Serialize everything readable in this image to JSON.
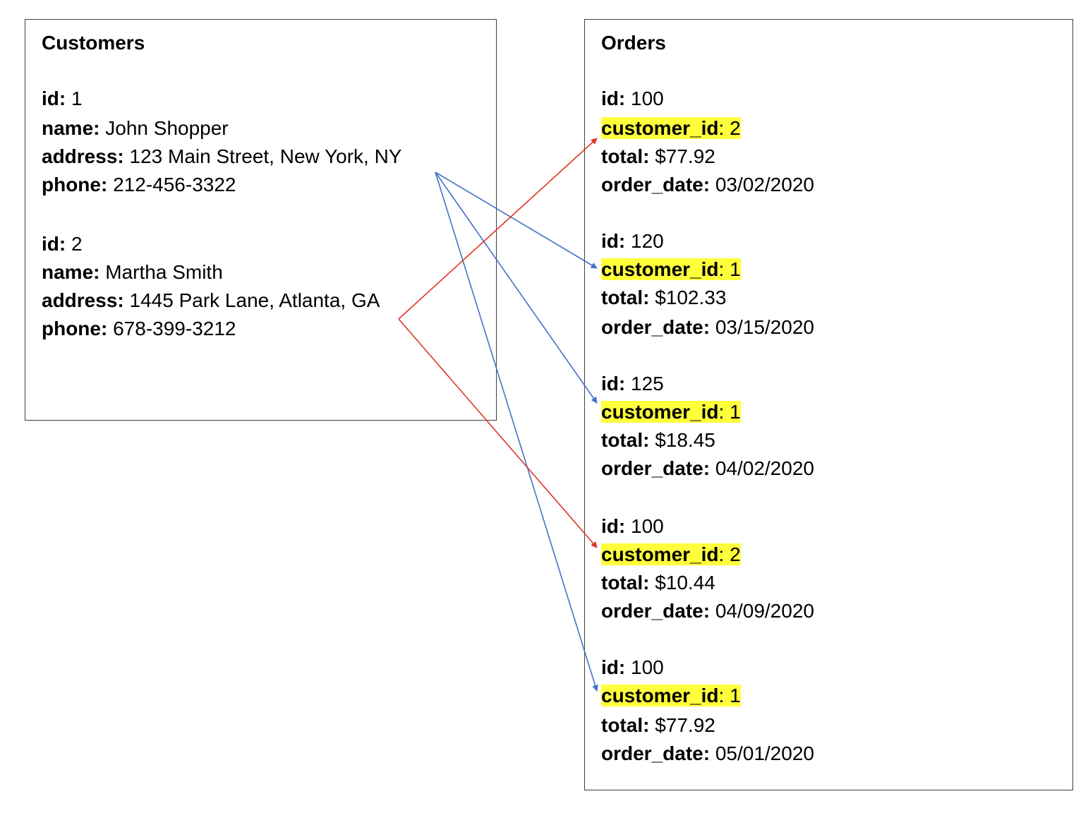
{
  "customers": {
    "title": "Customers",
    "records": [
      {
        "fields": [
          {
            "key": "id",
            "value": "1"
          },
          {
            "key": "name",
            "value": "John Shopper"
          },
          {
            "key": "address",
            "value": "123 Main Street, New York, NY"
          },
          {
            "key": "phone",
            "value": "212-456-3322"
          }
        ]
      },
      {
        "fields": [
          {
            "key": "id",
            "value": "2"
          },
          {
            "key": "name",
            "value": "Martha Smith"
          },
          {
            "key": "address",
            "value": "1445 Park Lane, Atlanta, GA"
          },
          {
            "key": "phone",
            "value": "678-399-3212"
          }
        ]
      }
    ]
  },
  "orders": {
    "title": "Orders",
    "records": [
      {
        "id": "100",
        "customer_id": "2",
        "total": "$77.92",
        "order_date": "03/02/2020"
      },
      {
        "id": "120",
        "customer_id": "1",
        "total": "$102.33",
        "order_date": "03/15/2020"
      },
      {
        "id": "125",
        "customer_id": "1",
        "total": "$18.45",
        "order_date": "04/02/2020"
      },
      {
        "id": "100",
        "customer_id": "2",
        "total": "$10.44",
        "order_date": "04/09/2020"
      },
      {
        "id": "100",
        "customer_id": "1",
        "total": "$77.92",
        "order_date": "05/01/2020"
      }
    ],
    "labels": {
      "id": "id",
      "customer_id": "customer_id",
      "total": "total",
      "order_date": "order_date"
    }
  },
  "links": [
    {
      "from_customer": 0,
      "to_order": 1,
      "color": "#4472c4"
    },
    {
      "from_customer": 0,
      "to_order": 2,
      "color": "#4472c4"
    },
    {
      "from_customer": 0,
      "to_order": 4,
      "color": "#4472c4"
    },
    {
      "from_customer": 1,
      "to_order": 0,
      "color": "#e03524"
    },
    {
      "from_customer": 1,
      "to_order": 3,
      "color": "#e03524"
    }
  ],
  "highlight_color": "#ffff3b"
}
